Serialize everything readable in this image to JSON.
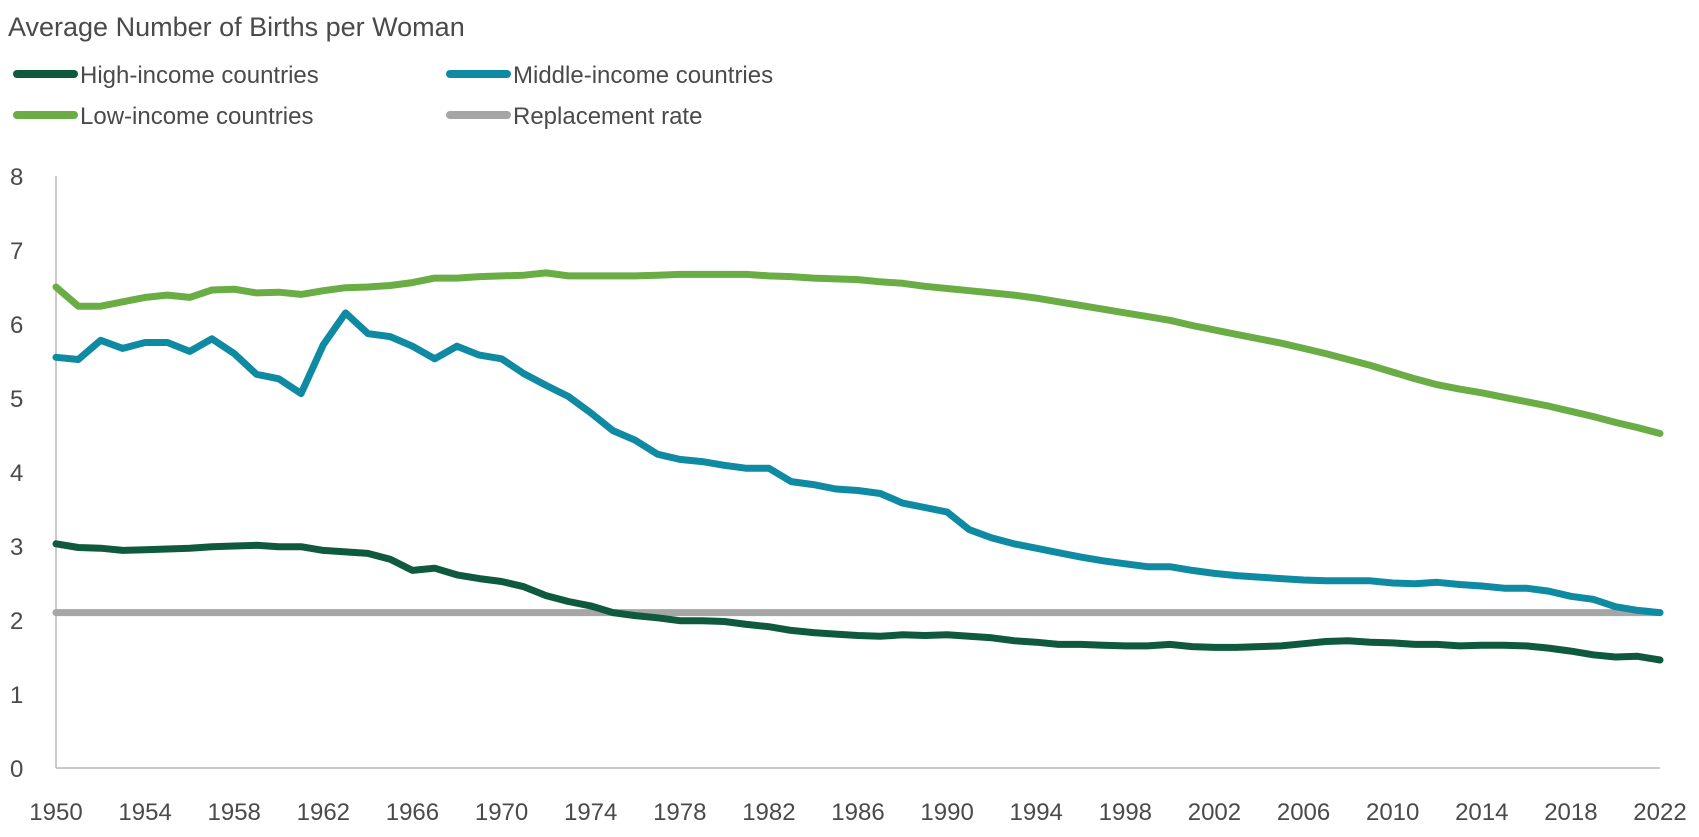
{
  "chart_data": {
    "type": "line",
    "title": "Average Number of Births per Woman",
    "xlabel": "",
    "ylabel": "",
    "xlim": [
      1950,
      2022
    ],
    "ylim": [
      0,
      8
    ],
    "grid": false,
    "legend_placement": "top-left",
    "x_ticks": [
      "1950",
      "1954",
      "1958",
      "1962",
      "1966",
      "1970",
      "1974",
      "1978",
      "1982",
      "1986",
      "1990",
      "1994",
      "1998",
      "2002",
      "2006",
      "2010",
      "2014",
      "2018",
      "2022"
    ],
    "y_ticks": [
      "0",
      "1",
      "2",
      "3",
      "4",
      "5",
      "6",
      "7",
      "8"
    ],
    "x_start": 1950,
    "series": [
      {
        "name": "High-income countries",
        "color": "#0f5a3e",
        "values": [
          3.03,
          2.98,
          2.97,
          2.94,
          2.95,
          2.96,
          2.97,
          2.99,
          3.0,
          3.01,
          2.99,
          2.99,
          2.94,
          2.92,
          2.9,
          2.82,
          2.67,
          2.7,
          2.61,
          2.56,
          2.52,
          2.45,
          2.33,
          2.25,
          2.19,
          2.1,
          2.06,
          2.03,
          1.99,
          1.99,
          1.98,
          1.94,
          1.91,
          1.86,
          1.83,
          1.81,
          1.79,
          1.78,
          1.8,
          1.79,
          1.8,
          1.78,
          1.76,
          1.72,
          1.7,
          1.67,
          1.67,
          1.66,
          1.65,
          1.65,
          1.67,
          1.64,
          1.63,
          1.63,
          1.64,
          1.65,
          1.68,
          1.71,
          1.72,
          1.7,
          1.69,
          1.67,
          1.67,
          1.65,
          1.66,
          1.66,
          1.65,
          1.62,
          1.58,
          1.53,
          1.5,
          1.51,
          1.46
        ]
      },
      {
        "name": "Middle-income countries",
        "color": "#0f8aa3",
        "values": [
          5.55,
          5.52,
          5.78,
          5.67,
          5.75,
          5.75,
          5.63,
          5.8,
          5.6,
          5.32,
          5.26,
          5.06,
          5.72,
          6.15,
          5.87,
          5.83,
          5.7,
          5.53,
          5.7,
          5.58,
          5.53,
          5.33,
          5.17,
          5.02,
          4.8,
          4.56,
          4.43,
          4.24,
          4.17,
          4.14,
          4.09,
          4.05,
          4.05,
          3.87,
          3.83,
          3.77,
          3.75,
          3.71,
          3.58,
          3.52,
          3.46,
          3.22,
          3.11,
          3.03,
          2.97,
          2.91,
          2.85,
          2.8,
          2.76,
          2.72,
          2.72,
          2.67,
          2.63,
          2.6,
          2.58,
          2.56,
          2.54,
          2.53,
          2.53,
          2.53,
          2.5,
          2.49,
          2.51,
          2.48,
          2.46,
          2.43,
          2.43,
          2.39,
          2.32,
          2.28,
          2.18,
          2.13,
          2.1
        ]
      },
      {
        "name": "Low-income countries",
        "color": "#6aad45",
        "values": [
          6.5,
          6.24,
          6.24,
          6.3,
          6.36,
          6.39,
          6.36,
          6.46,
          6.47,
          6.42,
          6.43,
          6.4,
          6.45,
          6.49,
          6.5,
          6.52,
          6.56,
          6.62,
          6.62,
          6.64,
          6.65,
          6.66,
          6.69,
          6.65,
          6.65,
          6.65,
          6.65,
          6.66,
          6.67,
          6.67,
          6.67,
          6.67,
          6.65,
          6.64,
          6.62,
          6.61,
          6.6,
          6.57,
          6.55,
          6.51,
          6.48,
          6.45,
          6.42,
          6.39,
          6.35,
          6.3,
          6.25,
          6.2,
          6.15,
          6.1,
          6.05,
          5.98,
          5.92,
          5.86,
          5.8,
          5.74,
          5.67,
          5.6,
          5.52,
          5.44,
          5.35,
          5.26,
          5.18,
          5.12,
          5.07,
          5.01,
          4.95,
          4.89,
          4.82,
          4.75,
          4.67,
          4.6,
          4.52
        ]
      },
      {
        "name": "Replacement rate",
        "color": "#a6a6a6",
        "constant": 2.1
      }
    ]
  }
}
